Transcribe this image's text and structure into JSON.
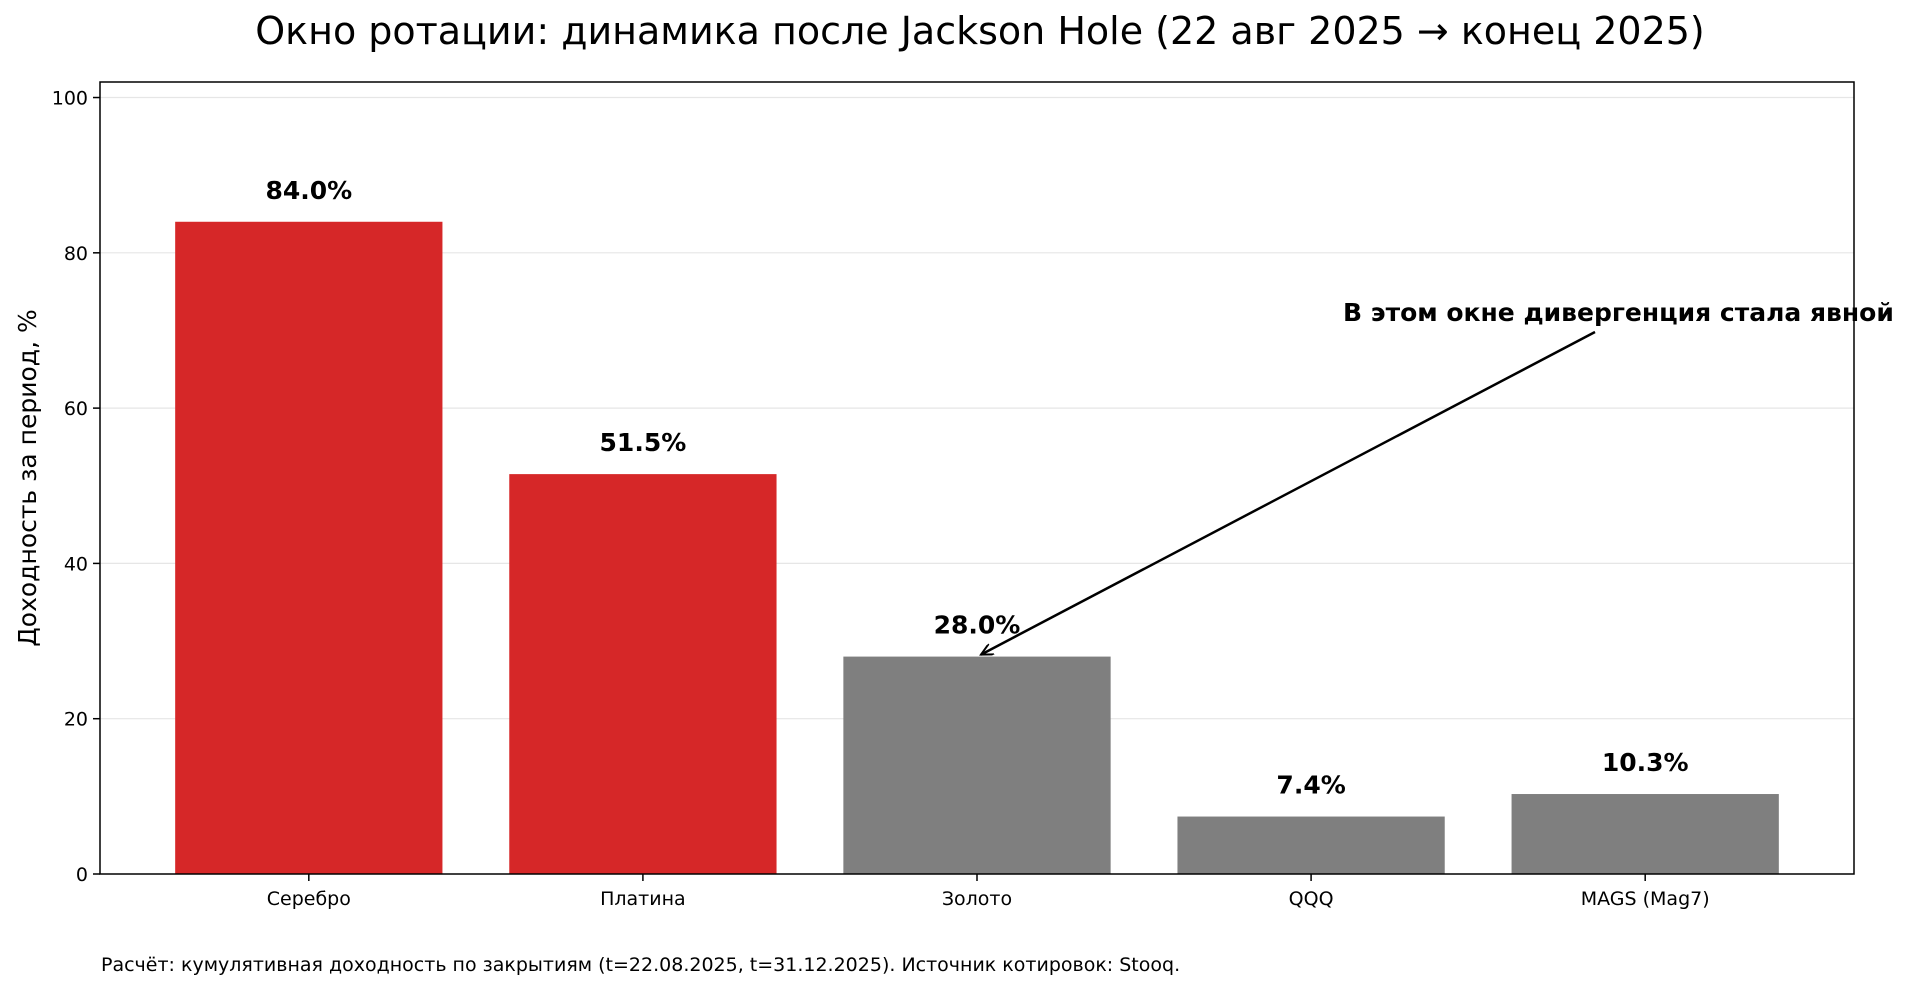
{
  "chart_data": {
    "type": "bar",
    "title": "Окно ротации: динамика после Jackson Hole (22 авг 2025 → конец 2025)",
    "xlabel": "",
    "ylabel": "Доходность за период, %",
    "categories": [
      "Серебро",
      "Платина",
      "Золото",
      "QQQ",
      "MAGS (Mag7)"
    ],
    "values": [
      84.0,
      51.5,
      28.0,
      7.4,
      10.3
    ],
    "value_labels": [
      "84.0%",
      "51.5%",
      "28.0%",
      "7.4%",
      "10.3%"
    ],
    "bar_colors": [
      "#d62728",
      "#d62728",
      "#7f7f7f",
      "#7f7f7f",
      "#7f7f7f"
    ],
    "ylim": [
      0,
      102
    ],
    "yticks": [
      0,
      20,
      40,
      60,
      80,
      100
    ],
    "grid": "horizontal",
    "annotation": {
      "text": "В этом окне дивергенция стала явной",
      "target_category": "Золото",
      "target_value": 28.0
    },
    "footnote": "Расчёт: кумулятивная доходность по закрытиям (t=22.08.2025, t=31.12.2025). Источник котировок: Stooq."
  }
}
